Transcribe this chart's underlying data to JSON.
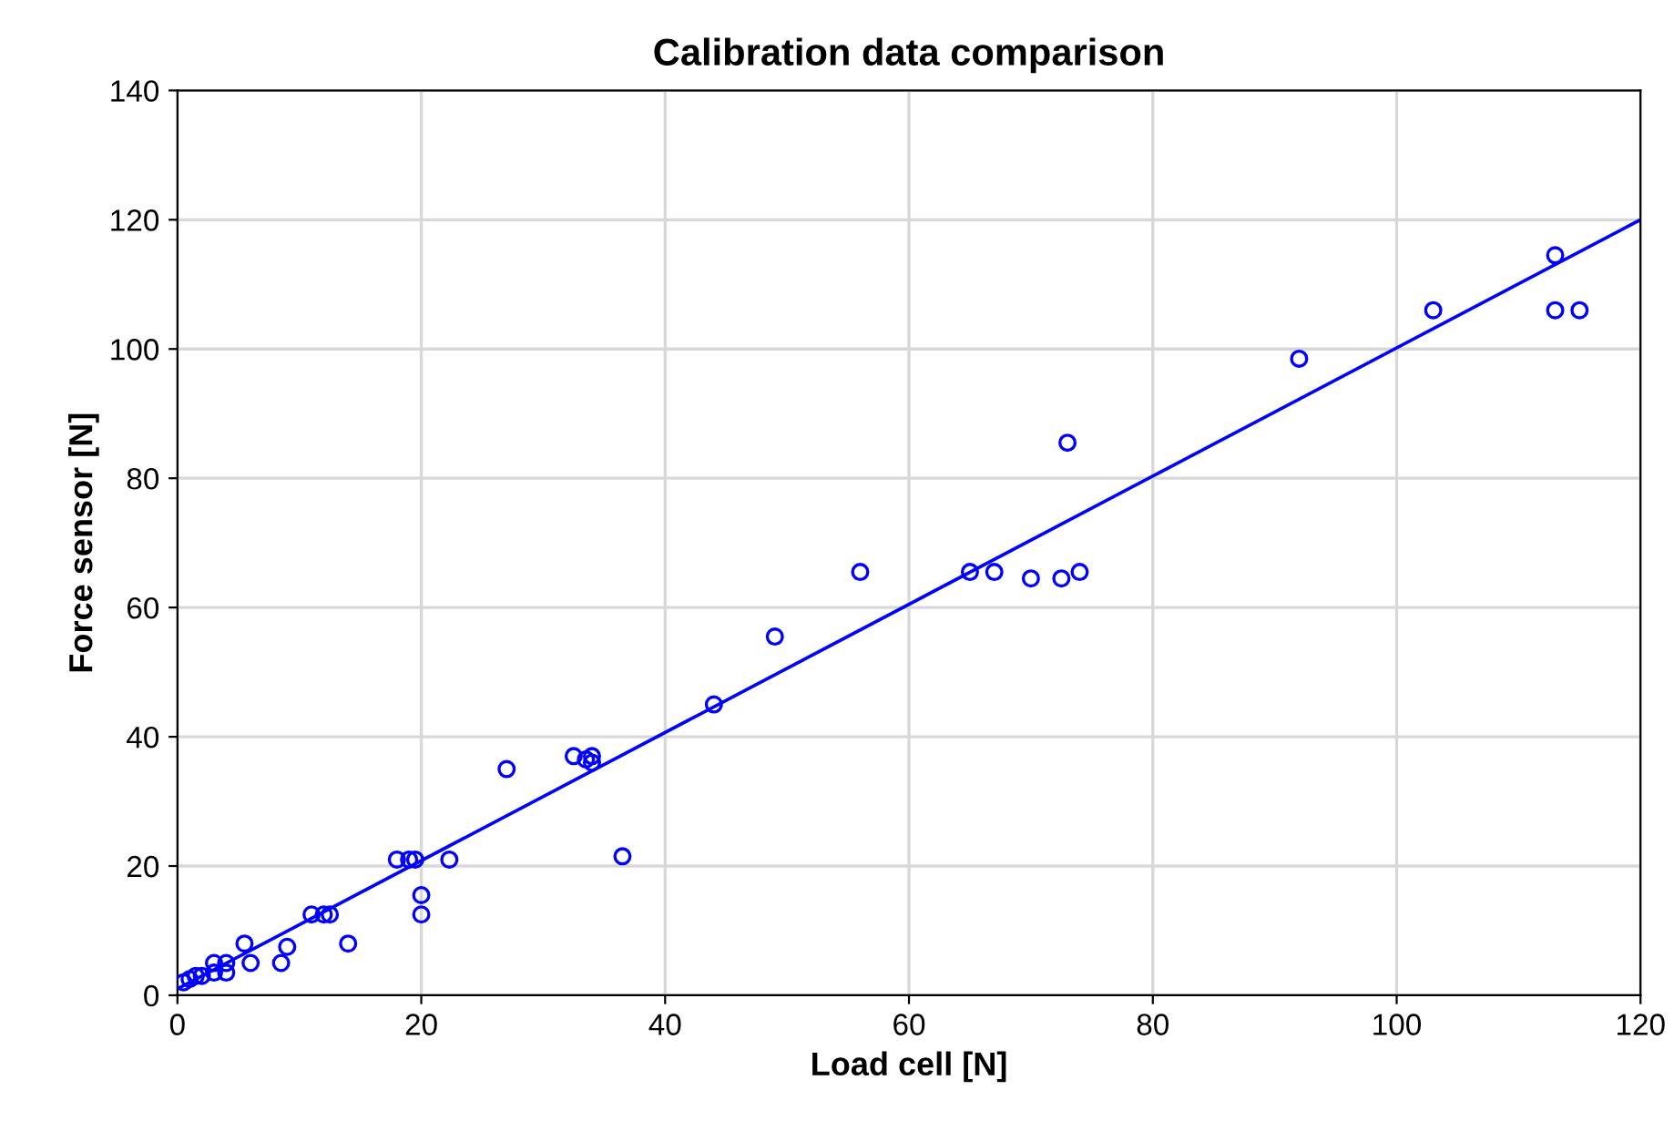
{
  "chart_data": {
    "type": "scatter",
    "title": "Calibration data comparison",
    "xlabel": "Load cell [N]",
    "ylabel": "Force sensor [N]",
    "xlim": [
      0,
      120
    ],
    "ylim": [
      0,
      140
    ],
    "xticks": [
      0,
      20,
      40,
      60,
      80,
      100,
      120
    ],
    "yticks": [
      0,
      20,
      40,
      60,
      80,
      100,
      120,
      140
    ],
    "grid": true,
    "marker": "circle",
    "series": [
      {
        "color": "#0000ff",
        "x": [
          0.5,
          1,
          1.5,
          2,
          3,
          3,
          4,
          4,
          5.5,
          6,
          8.5,
          9,
          11,
          12,
          12.5,
          14,
          18,
          19,
          19.5,
          20,
          20,
          22.3,
          27,
          32.5,
          33.5,
          34,
          34,
          36.5,
          44,
          49,
          56,
          65,
          67,
          70,
          72.5,
          73,
          74,
          92,
          103,
          113,
          113,
          115
        ],
        "values": [
          2,
          2.5,
          3,
          3,
          3.5,
          5,
          5,
          3.5,
          8,
          5,
          5,
          7.5,
          12.5,
          12.5,
          12.5,
          8,
          21,
          21,
          21,
          12.5,
          15.5,
          21,
          35,
          37,
          36.5,
          37,
          36,
          21.5,
          45,
          55.5,
          65.5,
          65.5,
          65.5,
          64.5,
          64.5,
          85.5,
          65.5,
          98.5,
          106,
          114.5,
          106,
          106
        ]
      },
      {
        "type": "line",
        "color": "#0000ff",
        "marker": "none",
        "x": [
          0,
          120
        ],
        "values": [
          1,
          120
        ]
      }
    ]
  }
}
